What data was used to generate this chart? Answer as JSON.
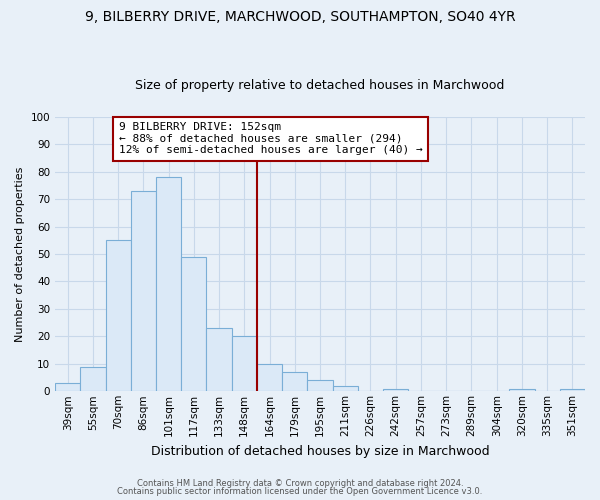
{
  "title": "9, BILBERRY DRIVE, MARCHWOOD, SOUTHAMPTON, SO40 4YR",
  "subtitle": "Size of property relative to detached houses in Marchwood",
  "xlabel": "Distribution of detached houses by size in Marchwood",
  "ylabel": "Number of detached properties",
  "categories": [
    "39sqm",
    "55sqm",
    "70sqm",
    "86sqm",
    "101sqm",
    "117sqm",
    "133sqm",
    "148sqm",
    "164sqm",
    "179sqm",
    "195sqm",
    "211sqm",
    "226sqm",
    "242sqm",
    "257sqm",
    "273sqm",
    "289sqm",
    "304sqm",
    "320sqm",
    "335sqm",
    "351sqm"
  ],
  "values": [
    3,
    9,
    55,
    73,
    78,
    49,
    23,
    20,
    10,
    7,
    4,
    2,
    0,
    1,
    0,
    0,
    0,
    0,
    1,
    0,
    1
  ],
  "bar_color": "#dbe9f7",
  "bar_edge_color": "#7aaed6",
  "vline_color": "#990000",
  "vline_x_index": 7.5,
  "annotation_line1": "9 BILBERRY DRIVE: 152sqm",
  "annotation_line2": "← 88% of detached houses are smaller (294)",
  "annotation_line3": "12% of semi-detached houses are larger (40) →",
  "ylim": [
    0,
    100
  ],
  "yticks": [
    0,
    10,
    20,
    30,
    40,
    50,
    60,
    70,
    80,
    90,
    100
  ],
  "grid_color": "#c8d8ea",
  "bg_color": "#e8f0f8",
  "fig_bg_color": "#e8f0f8",
  "footer_line1": "Contains HM Land Registry data © Crown copyright and database right 2024.",
  "footer_line2": "Contains public sector information licensed under the Open Government Licence v3.0.",
  "title_fontsize": 10,
  "subtitle_fontsize": 9,
  "ylabel_fontsize": 8,
  "xlabel_fontsize": 9,
  "tick_fontsize": 7.5,
  "annot_fontsize": 8
}
